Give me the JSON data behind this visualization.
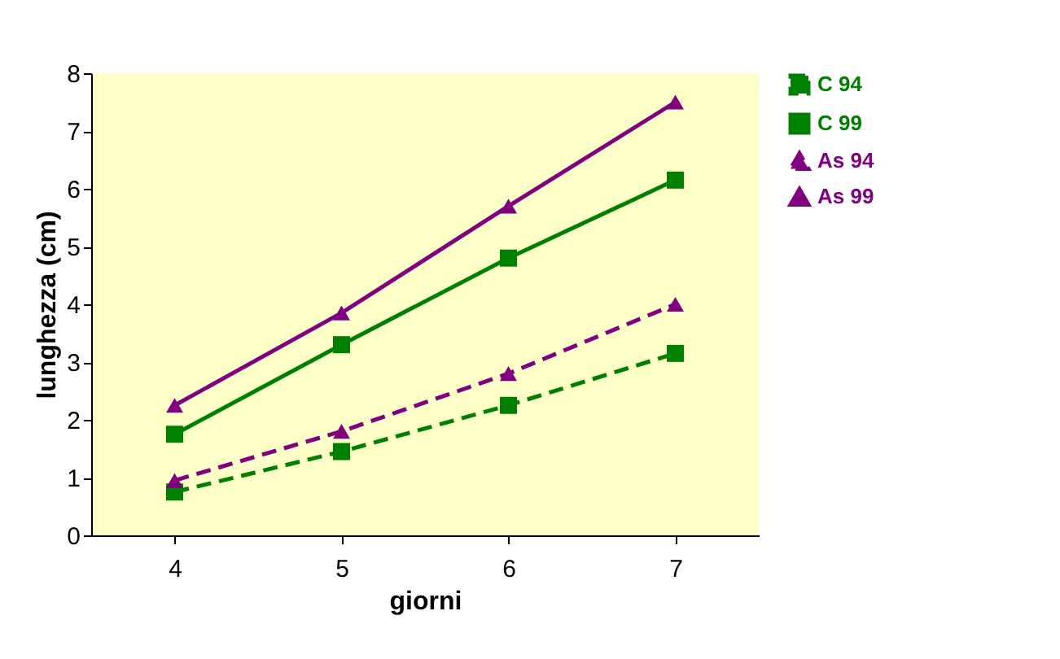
{
  "chart_data": {
    "type": "line",
    "xlabel": "giorni",
    "ylabel": "lunghezza (cm)",
    "categories": [
      "4",
      "5",
      "6",
      "7"
    ],
    "ylim": [
      0,
      8
    ],
    "yticks": [
      0,
      1,
      2,
      3,
      4,
      5,
      6,
      7,
      8
    ],
    "grid": false,
    "legend": "right",
    "series": [
      {
        "name": "C 94",
        "color": "#008000",
        "marker": "square",
        "line_style": "dashed",
        "values": [
          0.75,
          1.45,
          2.25,
          3.15
        ]
      },
      {
        "name": "C 99",
        "color": "#008000",
        "marker": "square",
        "line_style": "solid",
        "values": [
          1.75,
          3.3,
          4.8,
          6.15
        ]
      },
      {
        "name": "As 94",
        "color": "#800080",
        "marker": "triangle",
        "line_style": "dashed",
        "values": [
          0.95,
          1.8,
          2.8,
          4.0
        ]
      },
      {
        "name": "As 99",
        "color": "#800080",
        "marker": "triangle",
        "line_style": "solid",
        "values": [
          2.25,
          3.85,
          5.7,
          7.5
        ]
      }
    ]
  }
}
